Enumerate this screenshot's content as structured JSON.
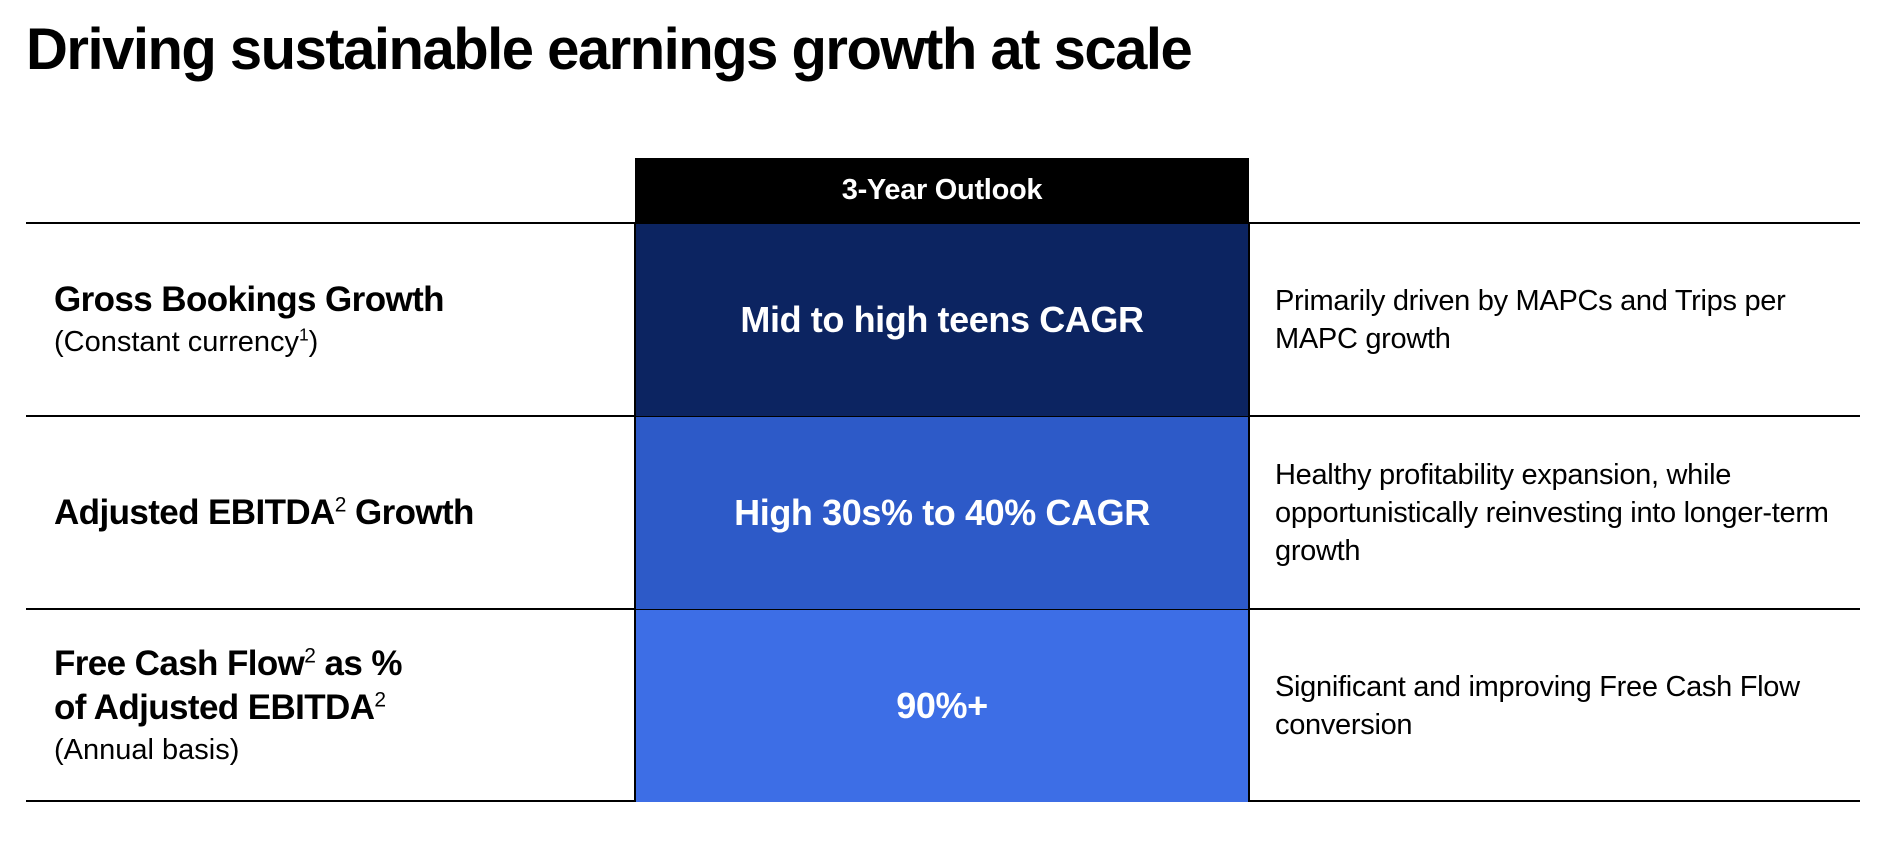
{
  "title": "Driving sustainable earnings growth at scale",
  "outlook_header": "3-Year Outlook",
  "colors": {
    "header_bg": "#000000",
    "row1_bg": "#0c2461",
    "row2_bg": "#2d5ac8",
    "row3_bg": "#3d6ee6"
  },
  "rows": [
    {
      "metric_line1": "Gross Bookings Growth",
      "metric_sub": "(Constant currency",
      "metric_sub_sup": "1",
      "metric_sub_end": ")",
      "outlook": "Mid to high teens CAGR",
      "note": "Primarily driven by MAPCs and Trips per MAPC growth"
    },
    {
      "metric_a": "Adjusted EBITDA",
      "metric_a_sup": "2",
      "metric_b": " Growth",
      "outlook": "High 30s% to 40% CAGR",
      "note": "Healthy profitability expansion, while opportunistically reinvesting into longer-term growth"
    },
    {
      "metric_line1_a": "Free Cash Flow",
      "metric_line1_sup": "2",
      "metric_line1_b": " as %",
      "metric_line2": "of Adjusted EBITDA",
      "metric_line2_sup": "2",
      "metric_sub": "(Annual basis)",
      "outlook": "90%+",
      "note": "Significant and improving Free Cash Flow conversion"
    }
  ]
}
